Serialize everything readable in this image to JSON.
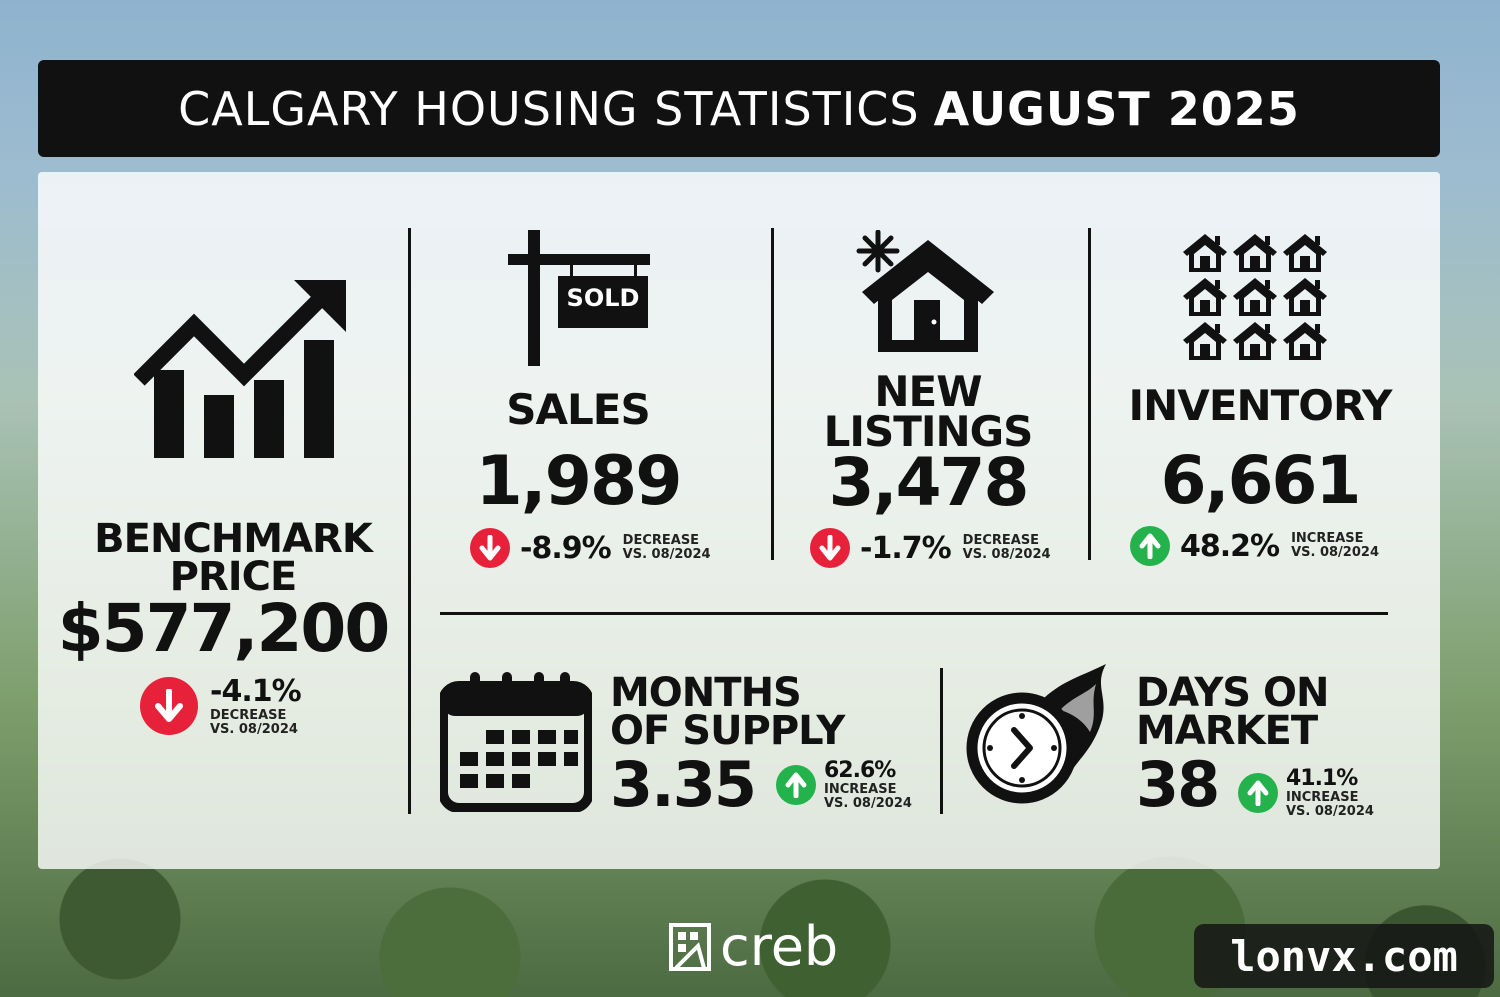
{
  "title": {
    "light": "CALGARY HOUSING STATISTICS",
    "bold": "AUGUST 2025"
  },
  "benchmark": {
    "label_line1": "BENCHMARK",
    "label_line2": "PRICE",
    "value": "$577,200",
    "change": "-4.1%",
    "direction": "DECREASE",
    "comparison": "VS. 08/2024",
    "icon": "growth-chart-icon"
  },
  "sales": {
    "label": "SALES",
    "value": "1,989",
    "change": "-8.9%",
    "direction": "DECREASE",
    "comparison": "VS. 08/2024",
    "sign_text": "SOLD",
    "icon": "sold-sign-icon"
  },
  "new_listings": {
    "label_line1": "NEW",
    "label_line2": "LISTINGS",
    "value": "3,478",
    "change": "-1.7%",
    "direction": "DECREASE",
    "comparison": "VS. 08/2024",
    "icon": "new-house-icon"
  },
  "inventory": {
    "label": "INVENTORY",
    "value": "6,661",
    "change": "48.2%",
    "direction": "INCREASE",
    "comparison": "VS. 08/2024",
    "icon": "houses-grid-icon"
  },
  "months_supply": {
    "label_line1": "MONTHS",
    "label_line2": "OF SUPPLY",
    "value": "3.35",
    "change": "62.6%",
    "direction": "INCREASE",
    "comparison": "VS. 08/2024",
    "icon": "calendar-icon"
  },
  "days_on_market": {
    "label_line1": "DAYS ON",
    "label_line2": "MARKET",
    "value": "38",
    "change": "41.1%",
    "direction": "INCREASE",
    "comparison": "VS. 08/2024",
    "icon": "fast-clock-icon"
  },
  "footer": {
    "logo_text": "creb"
  },
  "watermark": {
    "text": "lonvx.com"
  },
  "colors": {
    "decrease": "#e8213a",
    "increase": "#23b24b",
    "title_bg": "#111111"
  }
}
